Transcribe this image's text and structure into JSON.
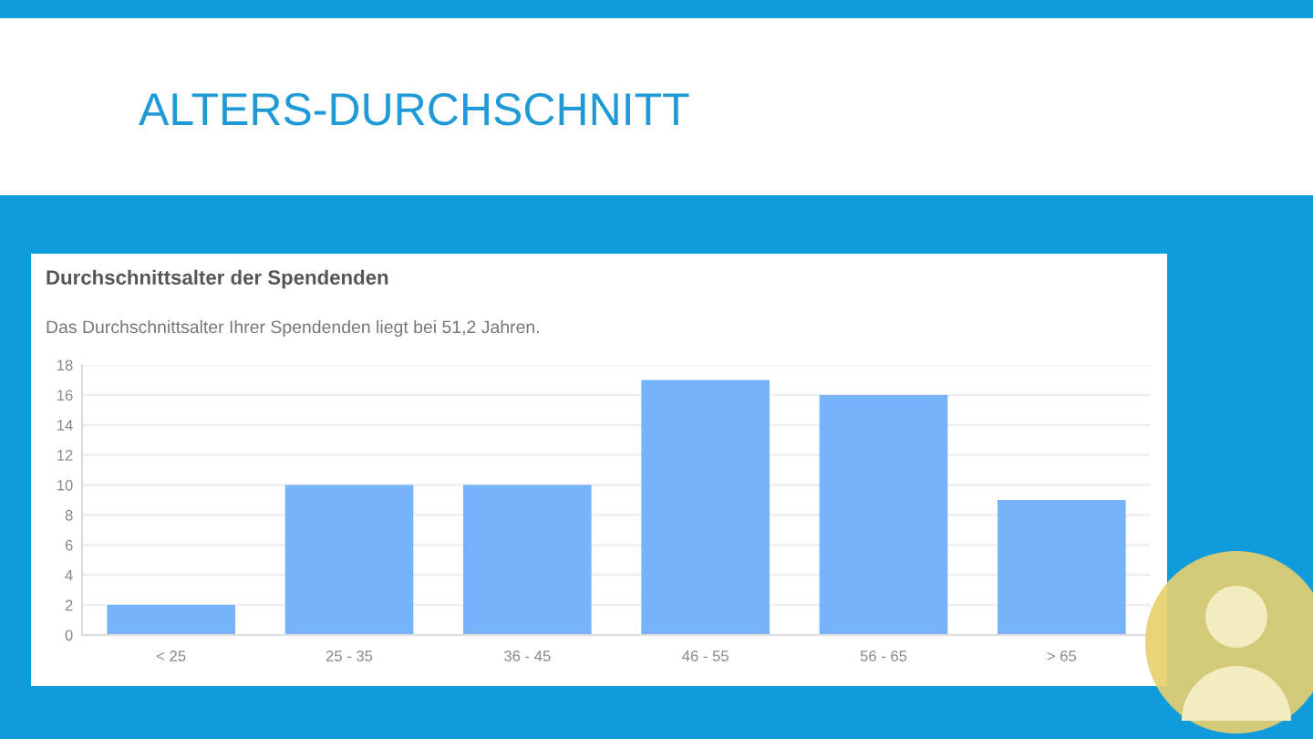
{
  "chart_data": {
    "type": "bar",
    "title": "ALTERS-DURCHSCHNITT",
    "subtitle": "Durchschnittsalter der Spendenden",
    "annotations": [
      "Das Durchschnittsalter Ihrer Spendenden liegt bei 51,2 Jahren."
    ],
    "categories": [
      "< 25",
      "25 - 35",
      "36 - 45",
      "46 - 55",
      "56 - 65",
      "> 65"
    ],
    "values": [
      2,
      10,
      10,
      17,
      16,
      9
    ],
    "color": "#77b3fb",
    "ylim": [
      0,
      18
    ],
    "yticks": [
      0,
      2,
      4,
      6,
      8,
      10,
      12,
      14,
      16,
      18
    ],
    "grid": "y"
  }
}
